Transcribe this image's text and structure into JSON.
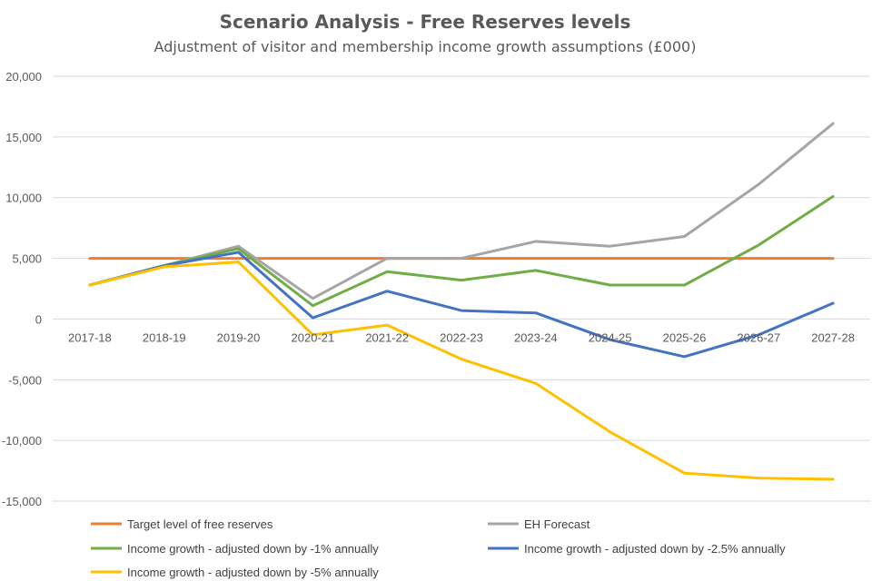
{
  "chart_data": {
    "type": "line",
    "title": "Scenario Analysis - Free Reserves levels",
    "subtitle": "Adjustment of visitor and membership income growth assumptions (£000)",
    "xlabel": "",
    "ylabel": "",
    "categories": [
      "2017-18",
      "2018-19",
      "2019-20",
      "2020-21",
      "2021-22",
      "2022-23",
      "2023-24",
      "2024-25",
      "2025-26",
      "2026-27",
      "2027-28"
    ],
    "ylim": [
      -15000,
      20000
    ],
    "yticks": [
      20000,
      15000,
      10000,
      5000,
      0,
      -5000,
      -10000,
      -15000
    ],
    "ytick_labels": [
      "20,000",
      "15,000",
      "10,000",
      "5,000",
      "0",
      "-5,000",
      "-10,000",
      "-15,000"
    ],
    "grid": true,
    "legend_position": "bottom",
    "series": [
      {
        "name": "Target level of free reserves",
        "color": "#ED7D31",
        "values": [
          5000,
          5000,
          5000,
          5000,
          5000,
          5000,
          5000,
          5000,
          5000,
          5000,
          5000
        ]
      },
      {
        "name": "EH Forecast",
        "color": "#A5A5A5",
        "values": [
          2800,
          4400,
          6000,
          1700,
          5000,
          5000,
          6400,
          6000,
          6800,
          11100,
          16100
        ]
      },
      {
        "name": "Income growth - adjusted down by -1% annually",
        "color": "#70AD47",
        "values": [
          2800,
          4400,
          5800,
          1100,
          3900,
          3200,
          4000,
          2800,
          2800,
          6100,
          10100
        ]
      },
      {
        "name": "Income growth - adjusted down by -2.5% annually",
        "color": "#4472C4",
        "values": [
          2800,
          4400,
          5500,
          100,
          2300,
          700,
          500,
          -1700,
          -3100,
          -1300,
          1300
        ]
      },
      {
        "name": "Income growth - adjusted down by -5% annually",
        "color": "#FFC000",
        "values": [
          2800,
          4300,
          4700,
          -1300,
          -500,
          -3300,
          -5300,
          -9300,
          -12700,
          -13100,
          -13200
        ]
      }
    ]
  }
}
